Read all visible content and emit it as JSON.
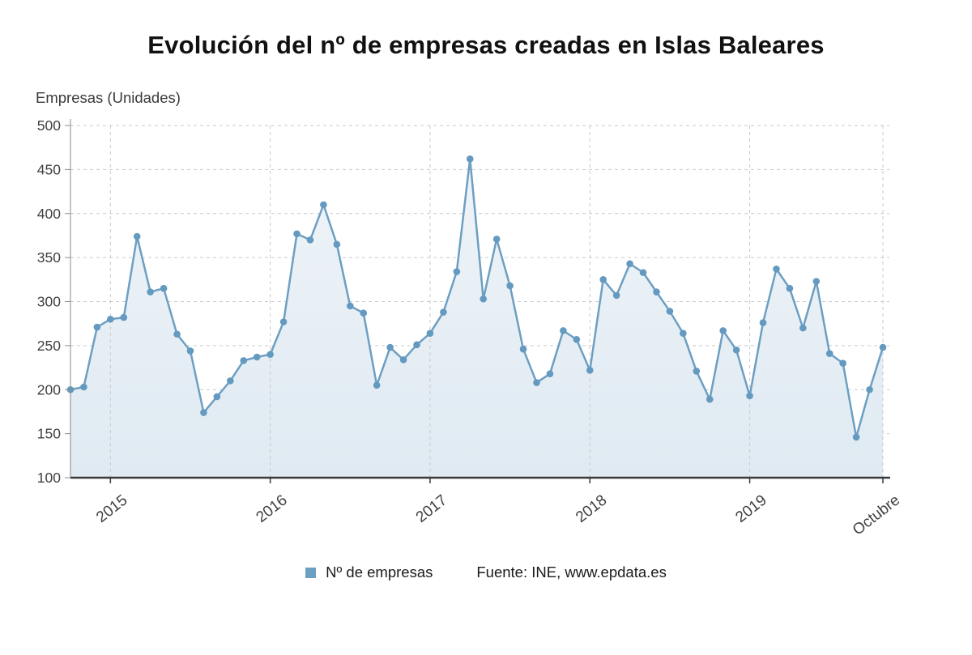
{
  "title": "Evolución del nº de empresas creadas en Islas Baleares",
  "axis_caption": "Empresas (Unidades)",
  "legend": {
    "series_label": "Nº de empresas"
  },
  "source": "Fuente: INE, www.epdata.es",
  "colors": {
    "line": "#6d9fc2",
    "marker": "#649ac0",
    "area_top": "#eff4f8",
    "area_bottom": "#dfeaf2",
    "grid": "#c9c9c9",
    "axis_left": "#8a8a8a",
    "axis_bottom": "#3a3a3a",
    "text": "#404040"
  },
  "chart_data": {
    "type": "area",
    "title": "Evolución del nº de empresas creadas en Islas Baleares",
    "ylabel": "Empresas (Unidades)",
    "ylim": [
      100,
      500
    ],
    "yticks": [
      100,
      150,
      200,
      250,
      300,
      350,
      400,
      450,
      500
    ],
    "xtick_labels": [
      "2015",
      "2016",
      "2017",
      "2018",
      "2019",
      "Octubre"
    ],
    "xtick_indices": [
      3,
      15,
      27,
      39,
      51,
      61
    ],
    "grid": true,
    "legend_position": "bottom",
    "series": [
      {
        "name": "Nº de empresas",
        "values": [
          200,
          203,
          271,
          280,
          282,
          374,
          311,
          315,
          263,
          244,
          174,
          192,
          210,
          233,
          237,
          240,
          277,
          377,
          370,
          410,
          365,
          295,
          287,
          205,
          248,
          234,
          251,
          264,
          288,
          334,
          462,
          303,
          371,
          318,
          246,
          208,
          218,
          267,
          257,
          222,
          325,
          307,
          343,
          333,
          311,
          289,
          264,
          221,
          189,
          267,
          245,
          193,
          276,
          337,
          315,
          270,
          323,
          241,
          230,
          146,
          200,
          248
        ]
      }
    ]
  }
}
